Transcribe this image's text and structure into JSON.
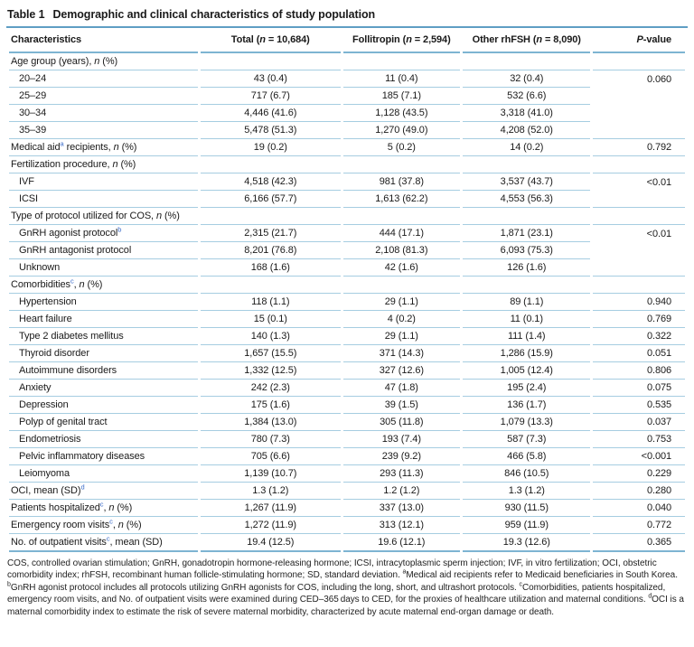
{
  "colors": {
    "rule_strong": "#5f9ec4",
    "rule_light": "#a6cde1",
    "superscript_blue": "#3a6bc9",
    "text": "#1a1a1a"
  },
  "table": {
    "title_label": "Table 1",
    "title_text": "Demographic and clinical characteristics of study population",
    "columns": [
      {
        "label": "Characteristics"
      },
      {
        "label": "Total (<i>n</i> = 10,684)"
      },
      {
        "label": "Follitropin (<i>n</i> = 2,594)"
      },
      {
        "label": "Other rhFSH (<i>n</i> = 8,090)"
      },
      {
        "label": "<i>P</i>-value"
      }
    ],
    "rows": [
      {
        "section": "Age group (years), <i>n</i> (%)"
      },
      {
        "label": "20–24",
        "indent": true,
        "values": [
          "43 (0.4)",
          "11 (0.4)",
          "32 (0.4)"
        ],
        "p": "0.060",
        "span": 4
      },
      {
        "label": "25–29",
        "indent": true,
        "values": [
          "717 (6.7)",
          "185 (7.1)",
          "532 (6.6)"
        ]
      },
      {
        "label": "30–34",
        "indent": true,
        "values": [
          "4,446 (41.6)",
          "1,128 (43.5)",
          "3,318 (41.0)"
        ]
      },
      {
        "label": "35–39",
        "indent": true,
        "values": [
          "5,478 (51.3)",
          "1,270 (49.0)",
          "4,208 (52.0)"
        ]
      },
      {
        "label": "Medical aid<sup>a</sup> recipients, <i>n</i> (%)",
        "values": [
          "19 (0.2)",
          "5 (0.2)",
          "14 (0.2)"
        ],
        "p": "0.792",
        "span": 1
      },
      {
        "section": "Fertilization procedure, <i>n</i> (%)"
      },
      {
        "label": "IVF",
        "indent": true,
        "values": [
          "4,518 (42.3)",
          "981 (37.8)",
          "3,537 (43.7)"
        ],
        "p": "<0.01",
        "span": 2
      },
      {
        "label": "ICSI",
        "indent": true,
        "values": [
          "6,166 (57.7)",
          "1,613 (62.2)",
          "4,553 (56.3)"
        ]
      },
      {
        "section": "Type of protocol utilized for COS, <i>n</i> (%)"
      },
      {
        "label": "GnRH agonist protocol<sup>b</sup>",
        "indent": true,
        "values": [
          "2,315 (21.7)",
          "444 (17.1)",
          "1,871 (23.1)"
        ],
        "p": "<0.01",
        "span": 3
      },
      {
        "label": "GnRH antagonist protocol",
        "indent": true,
        "values": [
          "8,201 (76.8)",
          "2,108 (81.3)",
          "6,093 (75.3)"
        ]
      },
      {
        "label": "Unknown",
        "indent": true,
        "values": [
          "168 (1.6)",
          "42 (1.6)",
          "126 (1.6)"
        ]
      },
      {
        "section": "Comorbidities<sup>c</sup>, <i>n</i> (%)"
      },
      {
        "label": "Hypertension",
        "indent": true,
        "values": [
          "118 (1.1)",
          "29 (1.1)",
          "89 (1.1)"
        ],
        "p": "0.940",
        "span": 1
      },
      {
        "label": "Heart failure",
        "indent": true,
        "values": [
          "15 (0.1)",
          "4 (0.2)",
          "11 (0.1)"
        ],
        "p": "0.769",
        "span": 1
      },
      {
        "label": "Type 2 diabetes mellitus",
        "indent": true,
        "values": [
          "140 (1.3)",
          "29 (1.1)",
          "111 (1.4)"
        ],
        "p": "0.322",
        "span": 1
      },
      {
        "label": "Thyroid disorder",
        "indent": true,
        "values": [
          "1,657 (15.5)",
          "371 (14.3)",
          "1,286 (15.9)"
        ],
        "p": "0.051",
        "span": 1
      },
      {
        "label": "Autoimmune disorders",
        "indent": true,
        "values": [
          "1,332 (12.5)",
          "327 (12.6)",
          "1,005 (12.4)"
        ],
        "p": "0.806",
        "span": 1
      },
      {
        "label": "Anxiety",
        "indent": true,
        "values": [
          "242 (2.3)",
          "47 (1.8)",
          "195 (2.4)"
        ],
        "p": "0.075",
        "span": 1
      },
      {
        "label": "Depression",
        "indent": true,
        "values": [
          "175 (1.6)",
          "39 (1.5)",
          "136 (1.7)"
        ],
        "p": "0.535",
        "span": 1
      },
      {
        "label": "Polyp of genital tract",
        "indent": true,
        "values": [
          "1,384 (13.0)",
          "305 (11.8)",
          "1,079 (13.3)"
        ],
        "p": "0.037",
        "span": 1
      },
      {
        "label": "Endometriosis",
        "indent": true,
        "values": [
          "780 (7.3)",
          "193 (7.4)",
          "587 (7.3)"
        ],
        "p": "0.753",
        "span": 1
      },
      {
        "label": "Pelvic inflammatory diseases",
        "indent": true,
        "values": [
          "705 (6.6)",
          "239 (9.2)",
          "466 (5.8)"
        ],
        "p": "<0.001",
        "span": 1
      },
      {
        "label": "Leiomyoma",
        "indent": true,
        "values": [
          "1,139 (10.7)",
          "293 (11.3)",
          "846 (10.5)"
        ],
        "p": "0.229",
        "span": 1
      },
      {
        "label": "OCI, mean (SD)<sup>d</sup>",
        "values": [
          "1.3 (1.2)",
          "1.2 (1.2)",
          "1.3 (1.2)"
        ],
        "p": "0.280",
        "span": 1
      },
      {
        "label": "Patients hospitalized<sup>c</sup>, <i>n</i> (%)",
        "values": [
          "1,267 (11.9)",
          "337 (13.0)",
          "930 (11.5)"
        ],
        "p": "0.040",
        "span": 1
      },
      {
        "label": "Emergency room visits<sup>c</sup>, <i>n</i> (%)",
        "values": [
          "1,272 (11.9)",
          "313 (12.1)",
          "959 (11.9)"
        ],
        "p": "0.772",
        "span": 1
      },
      {
        "label": "No. of outpatient visits<sup>c</sup>, mean (SD)",
        "values": [
          "19.4 (12.5)",
          "19.6 (12.1)",
          "19.3 (12.6)"
        ],
        "p": "0.365",
        "span": 1
      }
    ],
    "footnote_html": "COS, controlled ovarian stimulation; GnRH, gonadotropin hormone-releasing hormone; ICSI, intracytoplasmic sperm injection; IVF, in vitro fertilization; OCI, obstetric comorbidity index; rhFSH, recombinant human follicle-stimulating hormone; SD, standard deviation. <sup>a</sup>Medical aid recipients refer to Medicaid beneficiaries in South Korea. <sup>b</sup>GnRH agonist protocol includes all protocols utilizing GnRH agonists for COS, including the long, short, and ultrashort protocols. <sup>c</sup>Comorbidities, patients hospitalized, emergency room visits, and No. of outpatient visits were examined during CED–365 days to CED, for the proxies of healthcare utilization and maternal conditions. <sup>d</sup>OCI is a maternal comorbidity index to estimate the risk of severe maternal morbidity, characterized by acute maternal end-organ damage or death."
  }
}
